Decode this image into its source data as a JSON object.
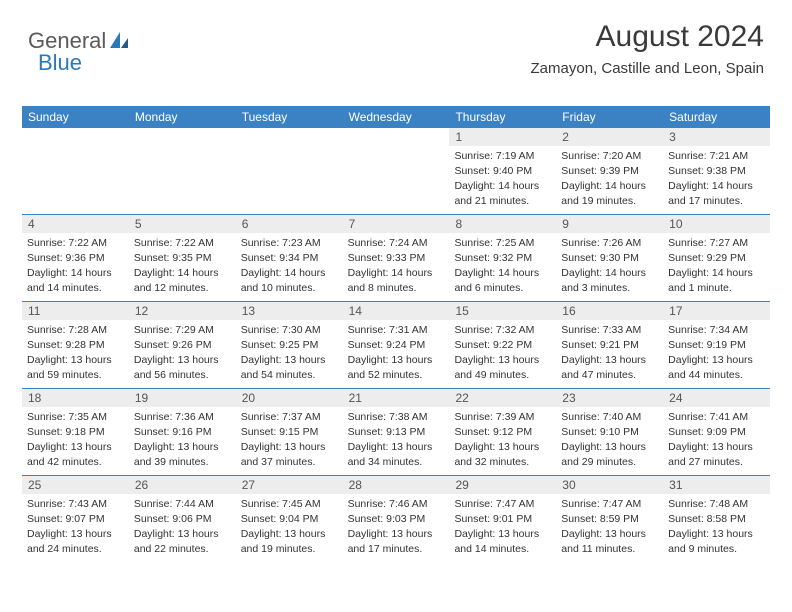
{
  "logo": {
    "text1": "General",
    "text2": "Blue"
  },
  "header": {
    "month_title": "August 2024",
    "location": "Zamayon, Castille and Leon, Spain"
  },
  "colors": {
    "header_bg": "#3b82c4",
    "header_fg": "#ffffff",
    "daynum_bg": "#ededed",
    "border": "#3b82c4",
    "logo_gray": "#5a5a5a",
    "logo_blue": "#2a7ab8"
  },
  "day_headers": [
    "Sunday",
    "Monday",
    "Tuesday",
    "Wednesday",
    "Thursday",
    "Friday",
    "Saturday"
  ],
  "weeks": [
    [
      {
        "n": "",
        "sr": "",
        "ss": "",
        "dl": ""
      },
      {
        "n": "",
        "sr": "",
        "ss": "",
        "dl": ""
      },
      {
        "n": "",
        "sr": "",
        "ss": "",
        "dl": ""
      },
      {
        "n": "",
        "sr": "",
        "ss": "",
        "dl": ""
      },
      {
        "n": "1",
        "sr": "Sunrise: 7:19 AM",
        "ss": "Sunset: 9:40 PM",
        "dl": "Daylight: 14 hours and 21 minutes."
      },
      {
        "n": "2",
        "sr": "Sunrise: 7:20 AM",
        "ss": "Sunset: 9:39 PM",
        "dl": "Daylight: 14 hours and 19 minutes."
      },
      {
        "n": "3",
        "sr": "Sunrise: 7:21 AM",
        "ss": "Sunset: 9:38 PM",
        "dl": "Daylight: 14 hours and 17 minutes."
      }
    ],
    [
      {
        "n": "4",
        "sr": "Sunrise: 7:22 AM",
        "ss": "Sunset: 9:36 PM",
        "dl": "Daylight: 14 hours and 14 minutes."
      },
      {
        "n": "5",
        "sr": "Sunrise: 7:22 AM",
        "ss": "Sunset: 9:35 PM",
        "dl": "Daylight: 14 hours and 12 minutes."
      },
      {
        "n": "6",
        "sr": "Sunrise: 7:23 AM",
        "ss": "Sunset: 9:34 PM",
        "dl": "Daylight: 14 hours and 10 minutes."
      },
      {
        "n": "7",
        "sr": "Sunrise: 7:24 AM",
        "ss": "Sunset: 9:33 PM",
        "dl": "Daylight: 14 hours and 8 minutes."
      },
      {
        "n": "8",
        "sr": "Sunrise: 7:25 AM",
        "ss": "Sunset: 9:32 PM",
        "dl": "Daylight: 14 hours and 6 minutes."
      },
      {
        "n": "9",
        "sr": "Sunrise: 7:26 AM",
        "ss": "Sunset: 9:30 PM",
        "dl": "Daylight: 14 hours and 3 minutes."
      },
      {
        "n": "10",
        "sr": "Sunrise: 7:27 AM",
        "ss": "Sunset: 9:29 PM",
        "dl": "Daylight: 14 hours and 1 minute."
      }
    ],
    [
      {
        "n": "11",
        "sr": "Sunrise: 7:28 AM",
        "ss": "Sunset: 9:28 PM",
        "dl": "Daylight: 13 hours and 59 minutes."
      },
      {
        "n": "12",
        "sr": "Sunrise: 7:29 AM",
        "ss": "Sunset: 9:26 PM",
        "dl": "Daylight: 13 hours and 56 minutes."
      },
      {
        "n": "13",
        "sr": "Sunrise: 7:30 AM",
        "ss": "Sunset: 9:25 PM",
        "dl": "Daylight: 13 hours and 54 minutes."
      },
      {
        "n": "14",
        "sr": "Sunrise: 7:31 AM",
        "ss": "Sunset: 9:24 PM",
        "dl": "Daylight: 13 hours and 52 minutes."
      },
      {
        "n": "15",
        "sr": "Sunrise: 7:32 AM",
        "ss": "Sunset: 9:22 PM",
        "dl": "Daylight: 13 hours and 49 minutes."
      },
      {
        "n": "16",
        "sr": "Sunrise: 7:33 AM",
        "ss": "Sunset: 9:21 PM",
        "dl": "Daylight: 13 hours and 47 minutes."
      },
      {
        "n": "17",
        "sr": "Sunrise: 7:34 AM",
        "ss": "Sunset: 9:19 PM",
        "dl": "Daylight: 13 hours and 44 minutes."
      }
    ],
    [
      {
        "n": "18",
        "sr": "Sunrise: 7:35 AM",
        "ss": "Sunset: 9:18 PM",
        "dl": "Daylight: 13 hours and 42 minutes."
      },
      {
        "n": "19",
        "sr": "Sunrise: 7:36 AM",
        "ss": "Sunset: 9:16 PM",
        "dl": "Daylight: 13 hours and 39 minutes."
      },
      {
        "n": "20",
        "sr": "Sunrise: 7:37 AM",
        "ss": "Sunset: 9:15 PM",
        "dl": "Daylight: 13 hours and 37 minutes."
      },
      {
        "n": "21",
        "sr": "Sunrise: 7:38 AM",
        "ss": "Sunset: 9:13 PM",
        "dl": "Daylight: 13 hours and 34 minutes."
      },
      {
        "n": "22",
        "sr": "Sunrise: 7:39 AM",
        "ss": "Sunset: 9:12 PM",
        "dl": "Daylight: 13 hours and 32 minutes."
      },
      {
        "n": "23",
        "sr": "Sunrise: 7:40 AM",
        "ss": "Sunset: 9:10 PM",
        "dl": "Daylight: 13 hours and 29 minutes."
      },
      {
        "n": "24",
        "sr": "Sunrise: 7:41 AM",
        "ss": "Sunset: 9:09 PM",
        "dl": "Daylight: 13 hours and 27 minutes."
      }
    ],
    [
      {
        "n": "25",
        "sr": "Sunrise: 7:43 AM",
        "ss": "Sunset: 9:07 PM",
        "dl": "Daylight: 13 hours and 24 minutes."
      },
      {
        "n": "26",
        "sr": "Sunrise: 7:44 AM",
        "ss": "Sunset: 9:06 PM",
        "dl": "Daylight: 13 hours and 22 minutes."
      },
      {
        "n": "27",
        "sr": "Sunrise: 7:45 AM",
        "ss": "Sunset: 9:04 PM",
        "dl": "Daylight: 13 hours and 19 minutes."
      },
      {
        "n": "28",
        "sr": "Sunrise: 7:46 AM",
        "ss": "Sunset: 9:03 PM",
        "dl": "Daylight: 13 hours and 17 minutes."
      },
      {
        "n": "29",
        "sr": "Sunrise: 7:47 AM",
        "ss": "Sunset: 9:01 PM",
        "dl": "Daylight: 13 hours and 14 minutes."
      },
      {
        "n": "30",
        "sr": "Sunrise: 7:47 AM",
        "ss": "Sunset: 8:59 PM",
        "dl": "Daylight: 13 hours and 11 minutes."
      },
      {
        "n": "31",
        "sr": "Sunrise: 7:48 AM",
        "ss": "Sunset: 8:58 PM",
        "dl": "Daylight: 13 hours and 9 minutes."
      }
    ]
  ]
}
